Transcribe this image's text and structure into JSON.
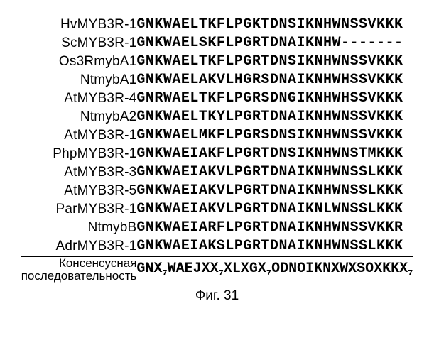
{
  "alignment": {
    "rows": [
      {
        "label": "HvMYB3R-1",
        "seq": "GNKWAELTKFLPGKTDNSIKNHWNSSVKKK"
      },
      {
        "label": "ScMYB3R-1",
        "seq": "GNKWAELSKFLPGRTDNAIKNHW-------"
      },
      {
        "label": "Os3RmybA1",
        "seq": "GNKWAELTKFLPGRTDNSIKNHWNSSVKKK"
      },
      {
        "label": "NtmybA1",
        "seq": "GNKWAELAKVLHGRSDNAIKNHWHSSVKKK"
      },
      {
        "label": "AtMYB3R-4",
        "seq": "GNRWAELTKFLPGRSDNGIKNHWHSSVKKK"
      },
      {
        "label": "NtmybA2",
        "seq": "GNKWAELTKYLPGRTDNAIKNHWNSSVKKK"
      },
      {
        "label": "AtMYB3R-1",
        "seq": "GNKWAELMKFLPGRSDNSIKNHWNSSVKKK"
      },
      {
        "label": "PhpMYB3R-1",
        "seq": "GNKWAEIAKFLPGRTDNSIKNHWNSTMKKK"
      },
      {
        "label": "AtMYB3R-3",
        "seq": "GNKWAEIAKVLPGRTDNAIKNHWNSSLKKK"
      },
      {
        "label": "AtMYB3R-5",
        "seq": "GNKWAEIAKVLPGRTDNAIKNHWNSSLKKK"
      },
      {
        "label": "ParMYB3R-1",
        "seq": "GNKWAEIAKVLPGRTDNAIKNLWNSSLKKK"
      },
      {
        "label": "NtmybB",
        "seq": "GNKWAEIARFLPGRTDNAIKNHWNSSVKKR"
      },
      {
        "label": "AdrMYB3R-1",
        "seq": "GNKWAEIAKSLPGRTDNAIKNHWNSSLKKK"
      }
    ],
    "consensus": {
      "label_line1": "Консенсусная",
      "label_line2": "последовательность",
      "parts": [
        {
          "t": "GNX"
        },
        {
          "t": "7",
          "sub": true
        },
        {
          "t": "WAEJXX"
        },
        {
          "t": "7",
          "sub": true
        },
        {
          "t": "XLXGX"
        },
        {
          "t": "7",
          "sub": true
        },
        {
          "t": "ODNOIKNXWXSOXKKX"
        },
        {
          "t": "7",
          "sub": true
        }
      ]
    }
  },
  "caption": "Фиг. 31",
  "colors": {
    "text": "#000000",
    "background": "#ffffff",
    "rule": "#000000"
  }
}
